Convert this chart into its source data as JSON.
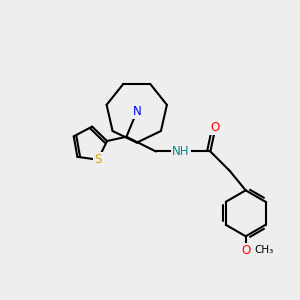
{
  "bg_color": "#eeeeee",
  "bond_color": "#000000",
  "bond_width": 1.5,
  "atom_colors": {
    "N": "#0000ff",
    "S": "#ccaa00",
    "O": "#ff0000",
    "NH": "#008b8b",
    "C": "#000000"
  },
  "font_size_atom": 8.5,
  "font_size_small": 8.0,
  "figsize": [
    3.0,
    3.0
  ],
  "dpi": 100
}
